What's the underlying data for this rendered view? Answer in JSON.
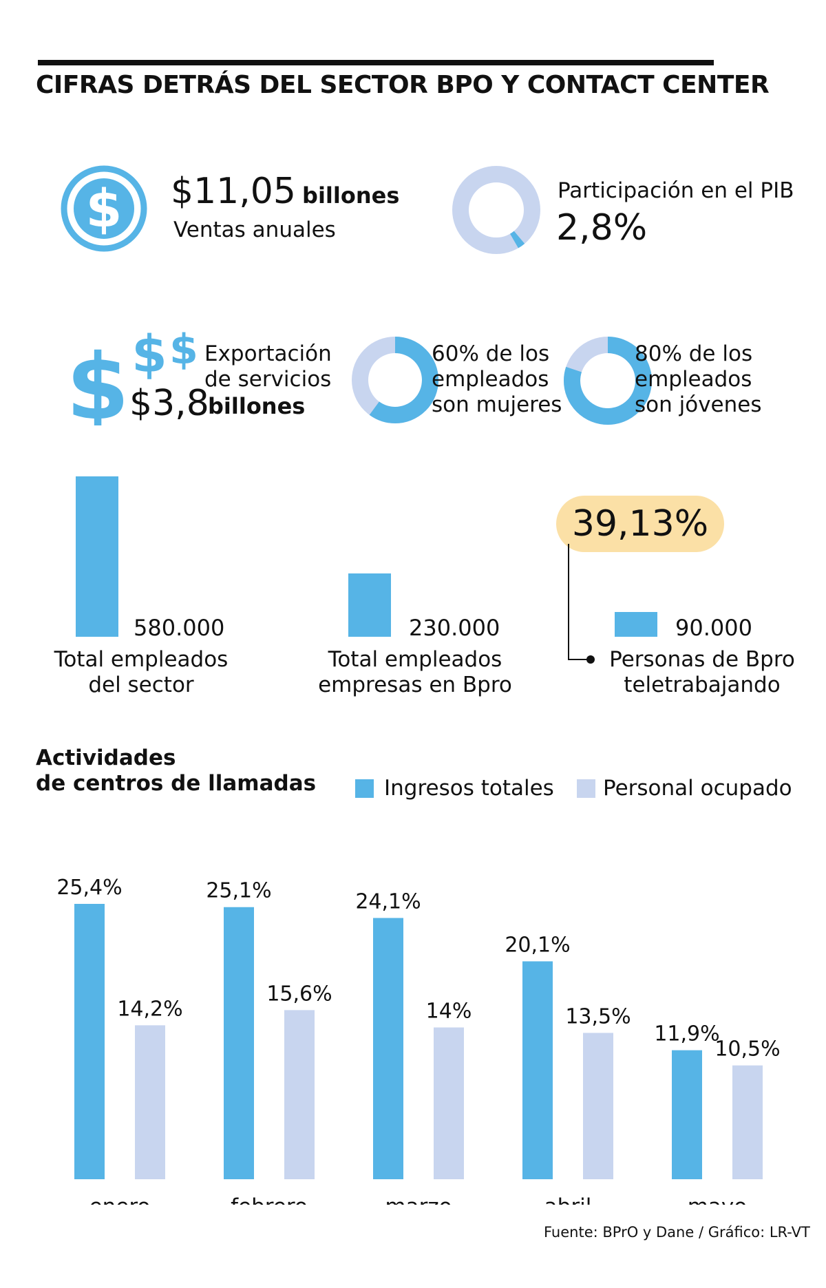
{
  "title": "CIFRAS DETRÁS DEL SECTOR BPO Y CONTACT CENTER",
  "colors": {
    "blue": "#56b4e6",
    "light_blue": "#c8d5ef",
    "highlight": "#fbe0a6",
    "text": "#111111"
  },
  "ventas": {
    "icon": "dollar-circle-icon",
    "amount": "$11,05",
    "unit": "billones",
    "label": "Ventas anuales"
  },
  "pib": {
    "label": "Participación en el PIB",
    "value": "2,8%",
    "percent": 2.8
  },
  "exportacion": {
    "icon": "dollar-signs-icon",
    "label_line1": "Exportación",
    "label_line2": "de servicios",
    "amount": "$3,8",
    "unit": "billones"
  },
  "mujeres": {
    "percent": 60,
    "line1": "60% de los",
    "line2": "empleados",
    "line3": "son mujeres"
  },
  "jovenes": {
    "percent": 80,
    "line1": "80% de los",
    "line2": "empleados",
    "line3": "son jóvenes"
  },
  "employees": {
    "highlight": "39,13%",
    "items": [
      {
        "value": 580000,
        "value_label": "580.000",
        "line1": "Total empleados",
        "line2": "del sector"
      },
      {
        "value": 230000,
        "value_label": "230.000",
        "line1": "Total empleados",
        "line2": "empresas en Bpro"
      },
      {
        "value": 90000,
        "value_label": "90.000",
        "line1": "Personas de Bpro",
        "line2": "teletrabajando"
      }
    ]
  },
  "chart_data": {
    "type": "bar",
    "title_line1": "Actividades",
    "title_line2": "de centros de llamadas",
    "categories": [
      "enero",
      "febrero",
      "marzo",
      "abril",
      "mayo"
    ],
    "series": [
      {
        "name": "Ingresos totales",
        "values": [
          25.4,
          25.1,
          24.1,
          20.1,
          11.9
        ],
        "labels": [
          "25,4%",
          "25,1%",
          "24,1%",
          "20,1%",
          "11,9%"
        ]
      },
      {
        "name": "Personal ocupado",
        "values": [
          14.2,
          15.6,
          14,
          13.5,
          10.5
        ],
        "labels": [
          "14,2%",
          "15,6%",
          "14%",
          "13,5%",
          "10,5%"
        ]
      }
    ],
    "ylim": [
      0,
      25.4
    ],
    "legend": "top-right",
    "grid": false
  },
  "source": "Fuente: BPrO y Dane / Gráfico: LR-VT"
}
